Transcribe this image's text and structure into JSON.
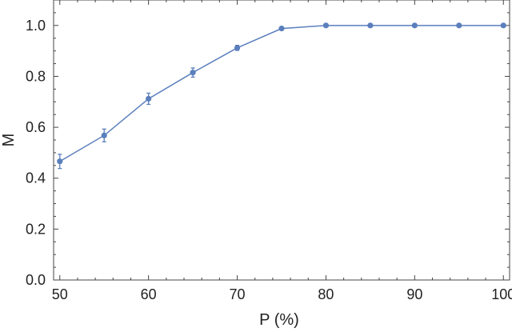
{
  "chart_data": {
    "type": "line",
    "title": "",
    "xlabel": "P (%)",
    "ylabel": "M",
    "xlim": [
      49.3,
      100.7
    ],
    "ylim": [
      0,
      1.1
    ],
    "x_ticks": [
      50,
      60,
      70,
      80,
      90,
      100
    ],
    "x_tick_labels": [
      "50",
      "60",
      "70",
      "80",
      "90",
      "100"
    ],
    "y_ticks": [
      0,
      0.2,
      0.4,
      0.6,
      0.8,
      1.0
    ],
    "y_tick_labels": [
      "0.0",
      "0.2",
      "0.4",
      "0.6",
      "0.8",
      "1.0"
    ],
    "grid": false,
    "legend": "none",
    "series": [
      {
        "color": "#5b7fbd",
        "x": [
          50,
          55,
          60,
          65,
          70,
          75,
          80,
          85,
          90,
          95,
          100
        ],
        "y": [
          0.466,
          0.568,
          0.712,
          0.815,
          0.912,
          0.988,
          1.0,
          1.0,
          1.0,
          1.0,
          1.0
        ],
        "error": [
          0.028,
          0.025,
          0.022,
          0.018,
          0.01,
          0.005,
          0.002,
          0.002,
          0.002,
          0.002,
          0.002
        ]
      }
    ]
  }
}
